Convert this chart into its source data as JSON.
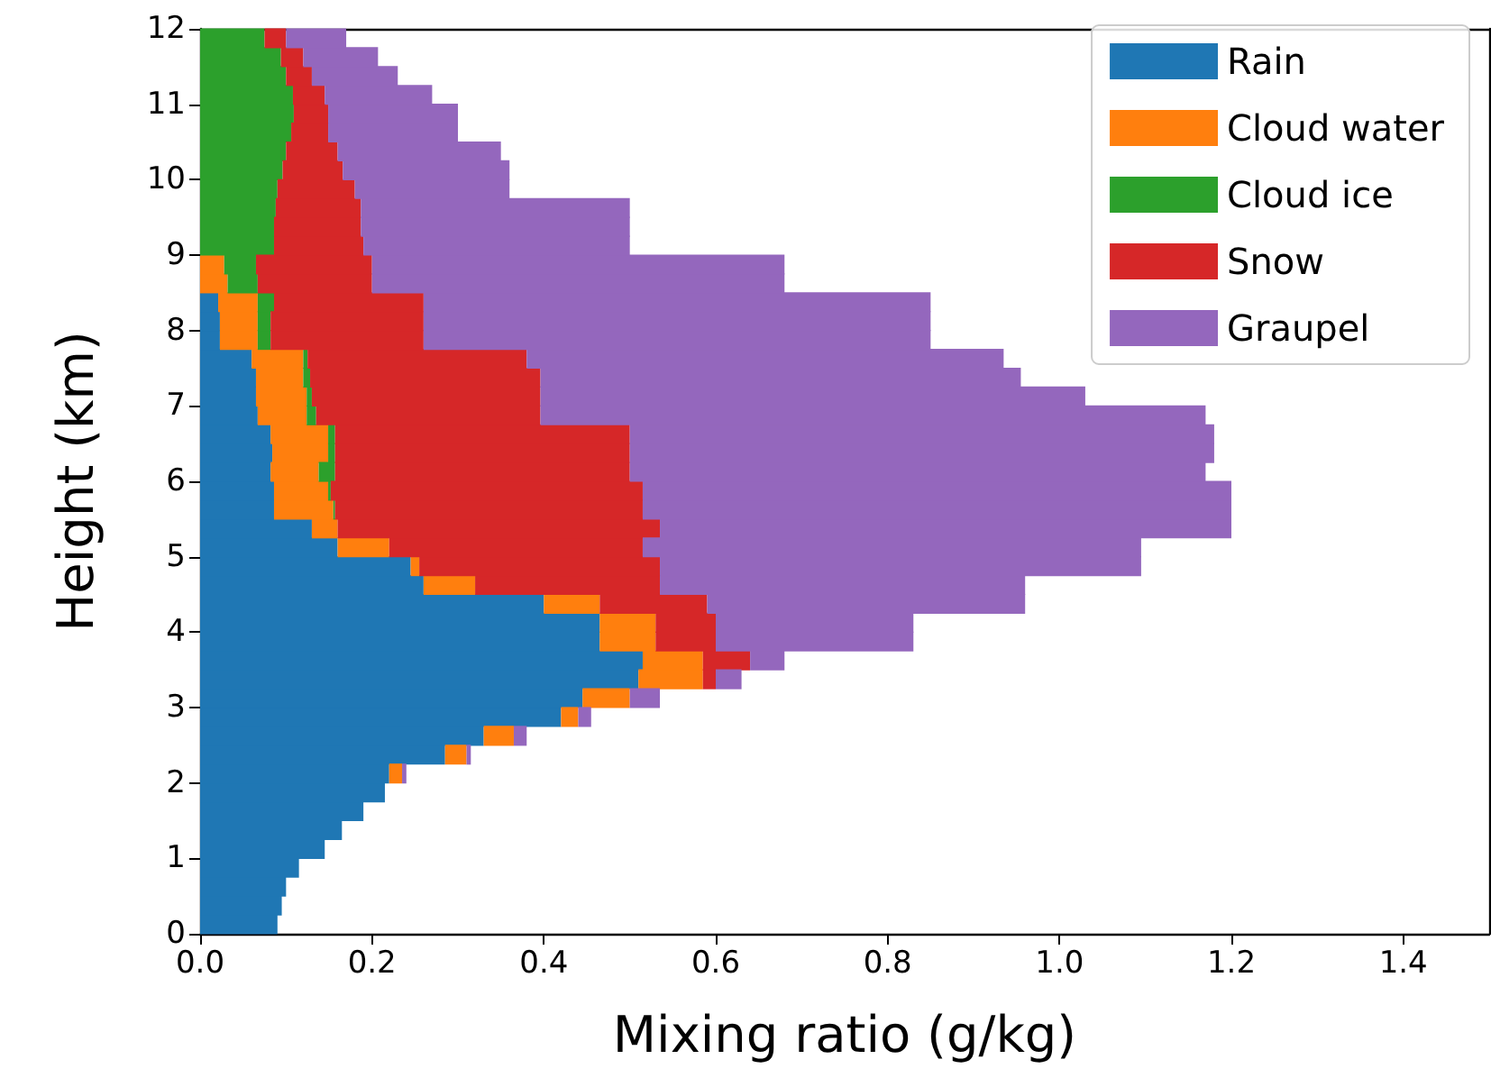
{
  "chart_data": {
    "type": "bar",
    "orientation": "horizontal",
    "stacked": true,
    "xlabel": "Mixing ratio (g/kg)",
    "ylabel": "Height (km)",
    "legend": "top right",
    "xlim": [
      0,
      1.5
    ],
    "xticks": [
      {
        "value": 0,
        "label": "0.0"
      },
      {
        "value": 0.2,
        "label": "0.2"
      },
      {
        "value": 0.4,
        "label": "0.4"
      },
      {
        "value": 0.6,
        "label": "0.6"
      },
      {
        "value": 0.8,
        "label": "0.8"
      },
      {
        "value": 1.0,
        "label": "1.0"
      },
      {
        "value": 1.2,
        "label": "1.2"
      },
      {
        "value": 1.4,
        "label": "1.4"
      }
    ],
    "ylim": [
      0,
      12
    ],
    "yticks": [
      0,
      1,
      2,
      3,
      4,
      5,
      6,
      7,
      8,
      9,
      10,
      11,
      12
    ],
    "x": [
      0.125,
      0.375,
      0.625,
      0.875,
      1.125,
      1.375,
      1.625,
      1.875,
      2.125,
      2.375,
      2.625,
      2.875,
      3.125,
      3.375,
      3.625,
      3.875,
      4.125,
      4.375,
      4.625,
      4.875,
      5.125,
      5.375,
      5.625,
      5.875,
      6.125,
      6.375,
      6.625,
      6.875,
      7.125,
      7.375,
      7.625,
      7.875,
      8.125,
      8.375,
      8.625,
      8.875,
      9.125,
      9.375,
      9.625,
      9.875,
      10.125,
      10.375,
      10.625,
      10.875,
      11.125,
      11.375,
      11.625,
      11.875
    ],
    "series": [
      {
        "name": "Rain",
        "color": "#1f77b4",
        "values": [
          0.09,
          0.095,
          0.1,
          0.115,
          0.145,
          0.165,
          0.19,
          0.215,
          0.22,
          0.285,
          0.33,
          0.42,
          0.445,
          0.51,
          0.515,
          0.465,
          0.465,
          0.4,
          0.26,
          0.245,
          0.16,
          0.13,
          0.086,
          0.086,
          0.082,
          0.084,
          0.082,
          0.067,
          0.065,
          0.065,
          0.06,
          0.023,
          0.023,
          0.021,
          0,
          0,
          0,
          0,
          0,
          0,
          0,
          0,
          0,
          0,
          0,
          0,
          0,
          0
        ]
      },
      {
        "name": "Cloud water",
        "color": "#ff7f0e",
        "values": [
          0,
          0,
          0,
          0,
          0,
          0,
          0,
          0,
          0.015,
          0.025,
          0.035,
          0.02,
          0.055,
          0.075,
          0.07,
          0.065,
          0.065,
          0.065,
          0.06,
          0.01,
          0.06,
          0.03,
          0.069,
          0.063,
          0.056,
          0.065,
          0.067,
          0.057,
          0.059,
          0.055,
          0.06,
          0.044,
          0.044,
          0.046,
          0.032,
          0.028,
          0,
          0,
          0,
          0,
          0,
          0,
          0,
          0,
          0,
          0,
          0,
          0
        ]
      },
      {
        "name": "Cloud ice",
        "color": "#2ca02c",
        "values": [
          0,
          0,
          0,
          0,
          0,
          0,
          0,
          0,
          0,
          0,
          0,
          0,
          0,
          0,
          0,
          0,
          0,
          0,
          0,
          0,
          0,
          0,
          0.002,
          0.003,
          0.019,
          0.008,
          0.008,
          0.011,
          0.006,
          0.008,
          0.005,
          0.015,
          0.015,
          0.019,
          0.035,
          0.037,
          0.086,
          0.086,
          0.088,
          0.09,
          0.096,
          0.1,
          0.106,
          0.109,
          0.108,
          0.1,
          0.094,
          0.075
        ]
      },
      {
        "name": "Snow",
        "color": "#d62728",
        "values": [
          0,
          0,
          0,
          0,
          0,
          0,
          0,
          0,
          0,
          0,
          0,
          0,
          0,
          0.015,
          0.055,
          0.07,
          0.07,
          0.125,
          0.215,
          0.28,
          0.295,
          0.375,
          0.358,
          0.363,
          0.343,
          0.343,
          0.343,
          0.261,
          0.266,
          0.268,
          0.255,
          0.178,
          0.178,
          0.174,
          0.133,
          0.135,
          0.104,
          0.101,
          0.099,
          0.09,
          0.07,
          0.06,
          0.043,
          0.04,
          0.037,
          0.03,
          0.026,
          0.025
        ]
      },
      {
        "name": "Graupel",
        "color": "#9467bd",
        "values": [
          0,
          0,
          0,
          0,
          0,
          0,
          0,
          0,
          0.005,
          0.005,
          0.015,
          0.015,
          0.035,
          0.03,
          0.04,
          0.23,
          0.23,
          0.37,
          0.425,
          0.56,
          0.58,
          0.665,
          0.685,
          0.685,
          0.67,
          0.68,
          0.68,
          0.774,
          0.634,
          0.559,
          0.555,
          0.59,
          0.59,
          0.59,
          0.48,
          0.48,
          0.31,
          0.313,
          0.313,
          0.18,
          0.194,
          0.19,
          0.151,
          0.151,
          0.125,
          0.1,
          0.087,
          0.07
        ]
      }
    ]
  }
}
